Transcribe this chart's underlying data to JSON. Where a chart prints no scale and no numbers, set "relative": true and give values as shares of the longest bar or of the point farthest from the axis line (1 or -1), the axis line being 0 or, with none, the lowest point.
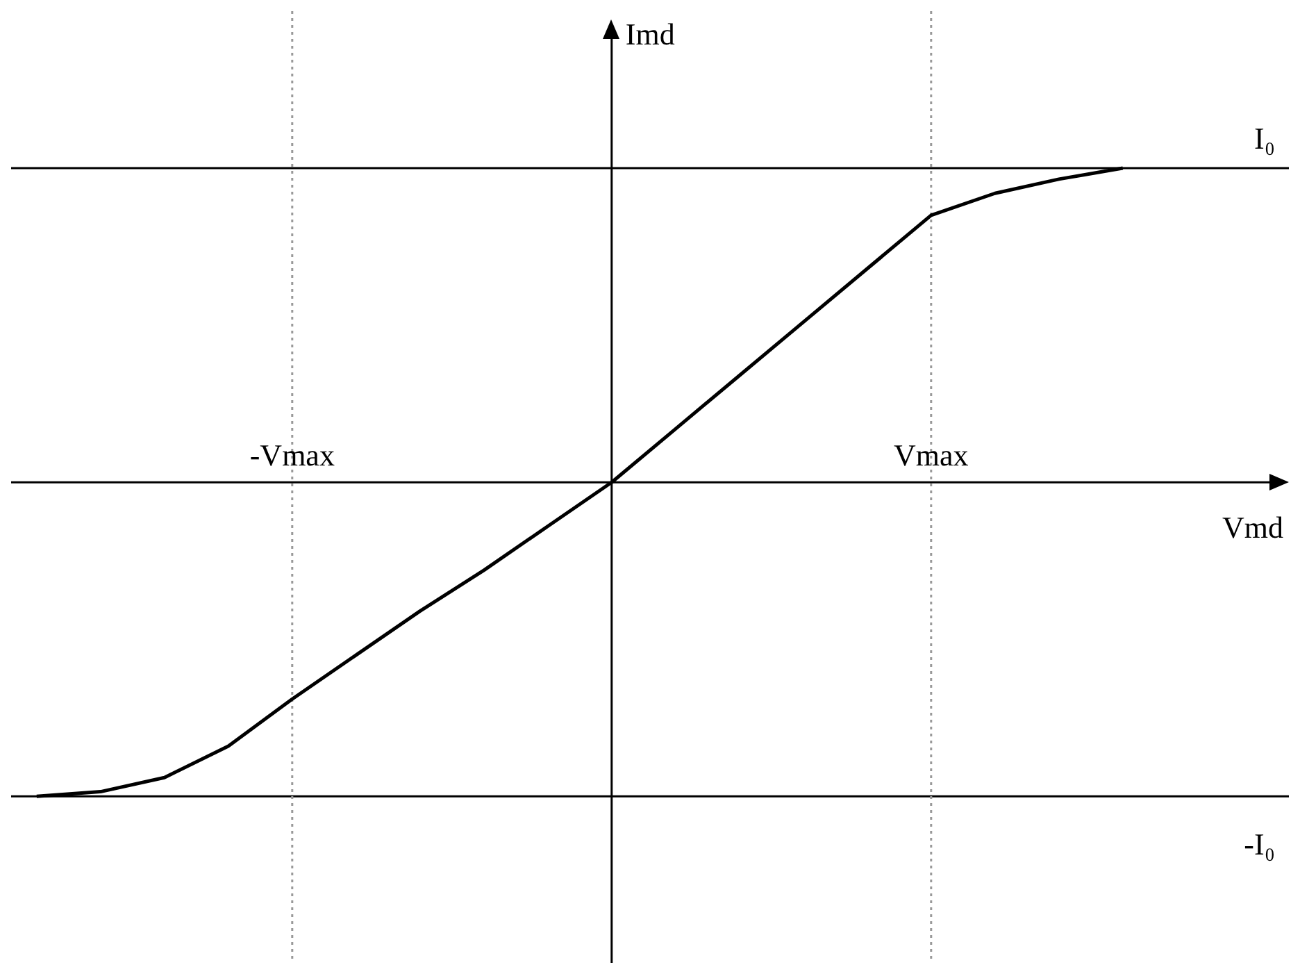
{
  "chart_data": {
    "type": "line",
    "xlabel": "Vmd",
    "ylabel": "Imd",
    "relative": true,
    "categories": [
      null,
      null,
      null,
      null,
      "-Vmax",
      null,
      null,
      null,
      null,
      null,
      null,
      null,
      null,
      null,
      "Vmax",
      null,
      null,
      null
    ],
    "series": [
      {
        "color": "#000000",
        "values": [
          -1,
          -0.985,
          -0.94,
          -0.84,
          -0.69,
          -0.55,
          -0.41,
          -0.28,
          -0.14,
          0,
          0.17,
          0.34,
          0.51,
          0.68,
          0.85,
          0.92,
          0.965,
          1.0
        ]
      }
    ],
    "ref_lines": [
      {
        "axis": "y",
        "value": 1,
        "label": "I₀",
        "color": "#000000",
        "line_style": "solid"
      },
      {
        "axis": "y",
        "value": -1,
        "label": "-I₀",
        "color": "#000000",
        "line_style": "solid"
      },
      {
        "axis": "x",
        "value": "-Vmax",
        "color": "#999999",
        "line_style": "dotted"
      },
      {
        "axis": "x",
        "value": "Vmax",
        "color": "#999999",
        "line_style": "dotted"
      }
    ],
    "marker": "none",
    "line_style": "solid",
    "legend": false
  }
}
